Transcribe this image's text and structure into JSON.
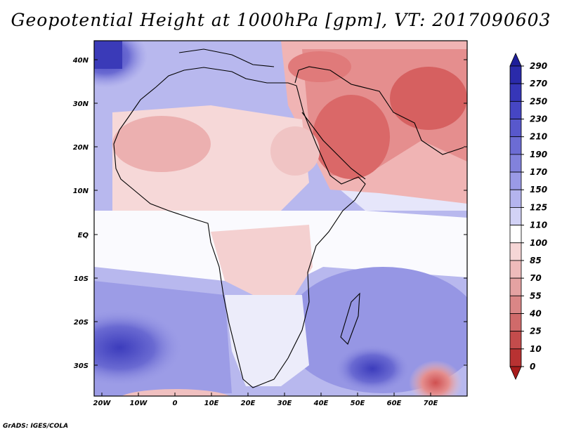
{
  "title": "Geopotential Height at 1000hPa [gpm], VT: 2017090603",
  "credit": "GrADS: IGES/COLA",
  "lat_labels": [
    "40N",
    "30N",
    "20N",
    "10N",
    "EQ",
    "10S",
    "20S",
    "30S"
  ],
  "lon_labels": [
    "20W",
    "10W",
    "0",
    "10E",
    "20E",
    "30E",
    "40E",
    "50E",
    "60E",
    "70E"
  ],
  "colorbar": {
    "labels": [
      "290",
      "270",
      "250",
      "230",
      "210",
      "190",
      "170",
      "150",
      "125",
      "110",
      "100",
      "85",
      "70",
      "55",
      "40",
      "25",
      "10",
      "0"
    ],
    "colors": [
      "#1e1e9a",
      "#2a2aaa",
      "#3636b8",
      "#4646c4",
      "#5858cc",
      "#6c6cd4",
      "#8282dc",
      "#9a9ae6",
      "#b4b4ee",
      "#d2d2f6",
      "#ffffff",
      "#f6d6d6",
      "#eebbbb",
      "#e4a2a2",
      "#da8686",
      "#d06a6a",
      "#c44c4c",
      "#b83232",
      "#a81c1c"
    ]
  },
  "map": {
    "projection": "lat-lon",
    "extent": {
      "lon": [
        -22,
        80
      ],
      "lat": [
        -36,
        46
      ]
    },
    "field": "Geopotential Height at 1000hPa",
    "unit": "gpm"
  }
}
